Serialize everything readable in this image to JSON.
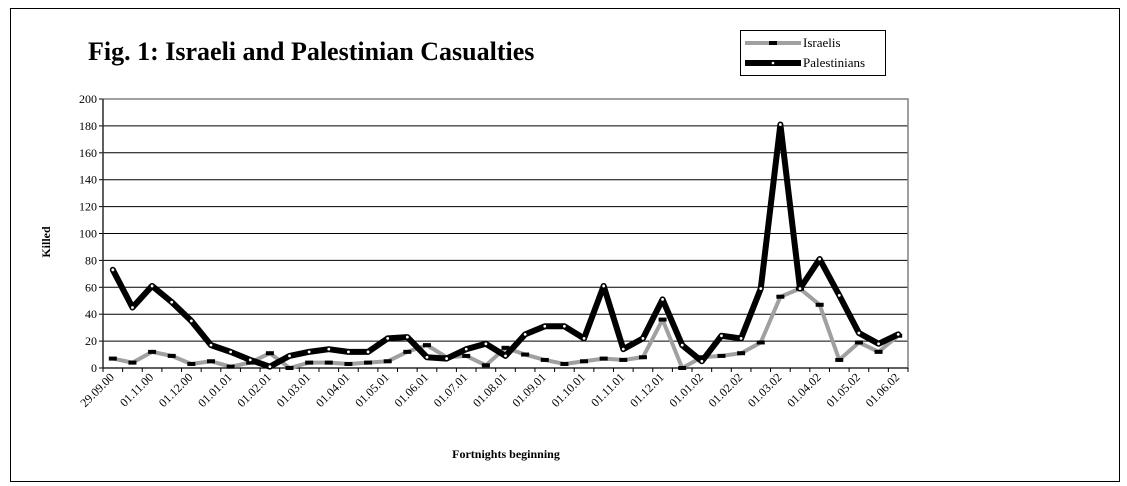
{
  "chart_data": {
    "type": "line",
    "title": "Fig. 1: Israeli and Palestinian Casualties",
    "xlabel": "Fortnights beginning",
    "ylabel": "Killed",
    "ylim": [
      0,
      200
    ],
    "yticks": [
      0,
      20,
      40,
      60,
      80,
      100,
      120,
      140,
      160,
      180,
      200
    ],
    "grid": true,
    "legend": "top-right",
    "x_tick_labels": [
      "29.09.00",
      "01.11.00",
      "01.12.00",
      "01.01.01",
      "01.02.01",
      "01.03.01",
      "01.04.01",
      "01.05.01",
      "01.06.01",
      "01.07.01",
      "01.08.01",
      "01.09.01",
      "01.10.01",
      "01.11.01",
      "01.12.01",
      "01.01.02",
      "01.02.02",
      "01.03.02",
      "01.04.02",
      "01.05.02",
      "01.06.02"
    ],
    "x_tick_positions": [
      0,
      2,
      4,
      6,
      8,
      10,
      12,
      14,
      16,
      18,
      20,
      22,
      24,
      26,
      28,
      30,
      32,
      34,
      36,
      38,
      40
    ],
    "series": [
      {
        "name": "Israelis",
        "color": "#a0a0a0",
        "marker": "dash",
        "values": [
          7,
          4,
          12,
          9,
          3,
          5,
          1,
          4,
          11,
          0,
          4,
          4,
          3,
          4,
          5,
          12,
          17,
          8,
          9,
          2,
          15,
          10,
          6,
          3,
          5,
          7,
          6,
          8,
          36,
          0,
          8,
          9,
          11,
          19,
          53,
          59,
          47,
          6,
          19,
          12,
          24
        ]
      },
      {
        "name": "Palestinians",
        "color": "#000000",
        "marker": "dot",
        "values": [
          73,
          45,
          61,
          49,
          35,
          17,
          12,
          6,
          1,
          9,
          12,
          14,
          12,
          12,
          22,
          23,
          8,
          7,
          14,
          18,
          9,
          25,
          31,
          31,
          22,
          61,
          14,
          22,
          51,
          17,
          5,
          24,
          22,
          59,
          181,
          59,
          81,
          54,
          26,
          18,
          25
        ]
      }
    ]
  }
}
